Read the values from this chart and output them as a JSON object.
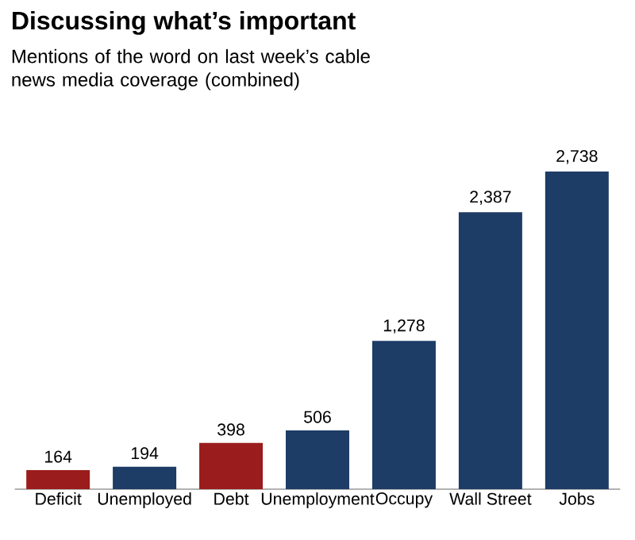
{
  "chart_data": {
    "type": "bar",
    "title": "Discussing what’s important",
    "subtitle": "Mentions of the word on last week’s cable news media coverage (combined)",
    "categories": [
      "Deficit",
      "Unemployed",
      "Debt",
      "Unemployment",
      "Occupy",
      "Wall Street",
      "Jobs"
    ],
    "values": [
      164,
      194,
      398,
      506,
      1278,
      2387,
      2738
    ],
    "value_labels": [
      "164",
      "194",
      "398",
      "506",
      "1,278",
      "2,387",
      "2,738"
    ],
    "colors": [
      "#9b1c1c",
      "#1d3c66",
      "#9b1c1c",
      "#1d3c66",
      "#1d3c66",
      "#1d3c66",
      "#1d3c66"
    ]
  }
}
